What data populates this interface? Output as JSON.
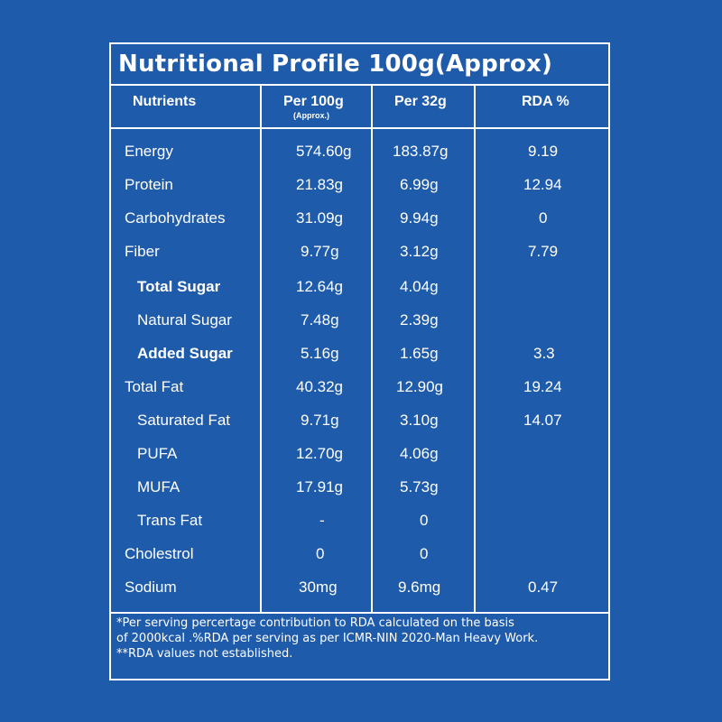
{
  "title": "Nutritional Profile 100g(Approx)",
  "headers": {
    "nutrients": "Nutrients",
    "per100": "Per 100g",
    "per100_sub": "(Approx.)",
    "per32": "Per 32g",
    "rda": "RDA %"
  },
  "rows": [
    {
      "name": "Energy",
      "per100": "574.60g",
      "per32": "183.87g",
      "rda": "9.19"
    },
    {
      "name": "Protein",
      "per100": "21.83g",
      "per32": "6.99g",
      "rda": "12.94"
    },
    {
      "name": "Carbohydrates",
      "per100": "31.09g",
      "per32": "9.94g",
      "rda": "0"
    },
    {
      "name": "Fiber",
      "per100": "9.77g",
      "per32": "3.12g",
      "rda": "7.79"
    },
    {
      "name": "Total Sugar",
      "per100": "12.64g",
      "per32": "4.04g",
      "rda": ""
    },
    {
      "name": "Natural Sugar",
      "per100": "7.48g",
      "per32": "2.39g",
      "rda": ""
    },
    {
      "name": "Added Sugar",
      "per100": "5.16g",
      "per32": "1.65g",
      "rda": "3.3"
    },
    {
      "name": "Total Fat",
      "per100": "40.32g",
      "per32": "12.90g",
      "rda": "19.24"
    },
    {
      "name": "Saturated Fat",
      "per100": "9.71g",
      "per32": "3.10g",
      "rda": "14.07"
    },
    {
      "name": "PUFA",
      "per100": "12.70g",
      "per32": "4.06g",
      "rda": ""
    },
    {
      "name": "MUFA",
      "per100": "17.91g",
      "per32": "5.73g",
      "rda": ""
    },
    {
      "name": "Trans Fat",
      "per100": "-",
      "per32": "0",
      "rda": ""
    },
    {
      "name": "Cholestrol",
      "per100": "0",
      "per32": "0",
      "rda": ""
    },
    {
      "name": "Sodium",
      "per100": "30mg",
      "per32": "9.6mg",
      "rda": "0.47"
    }
  ],
  "footnotes": [
    "*Per serving percertage contribution to RDA calculated on the basis",
    "of 2000kcal .%RDA per serving as per ICMR-NIN 2020-Man Heavy Work.",
    "**RDA values not established."
  ]
}
